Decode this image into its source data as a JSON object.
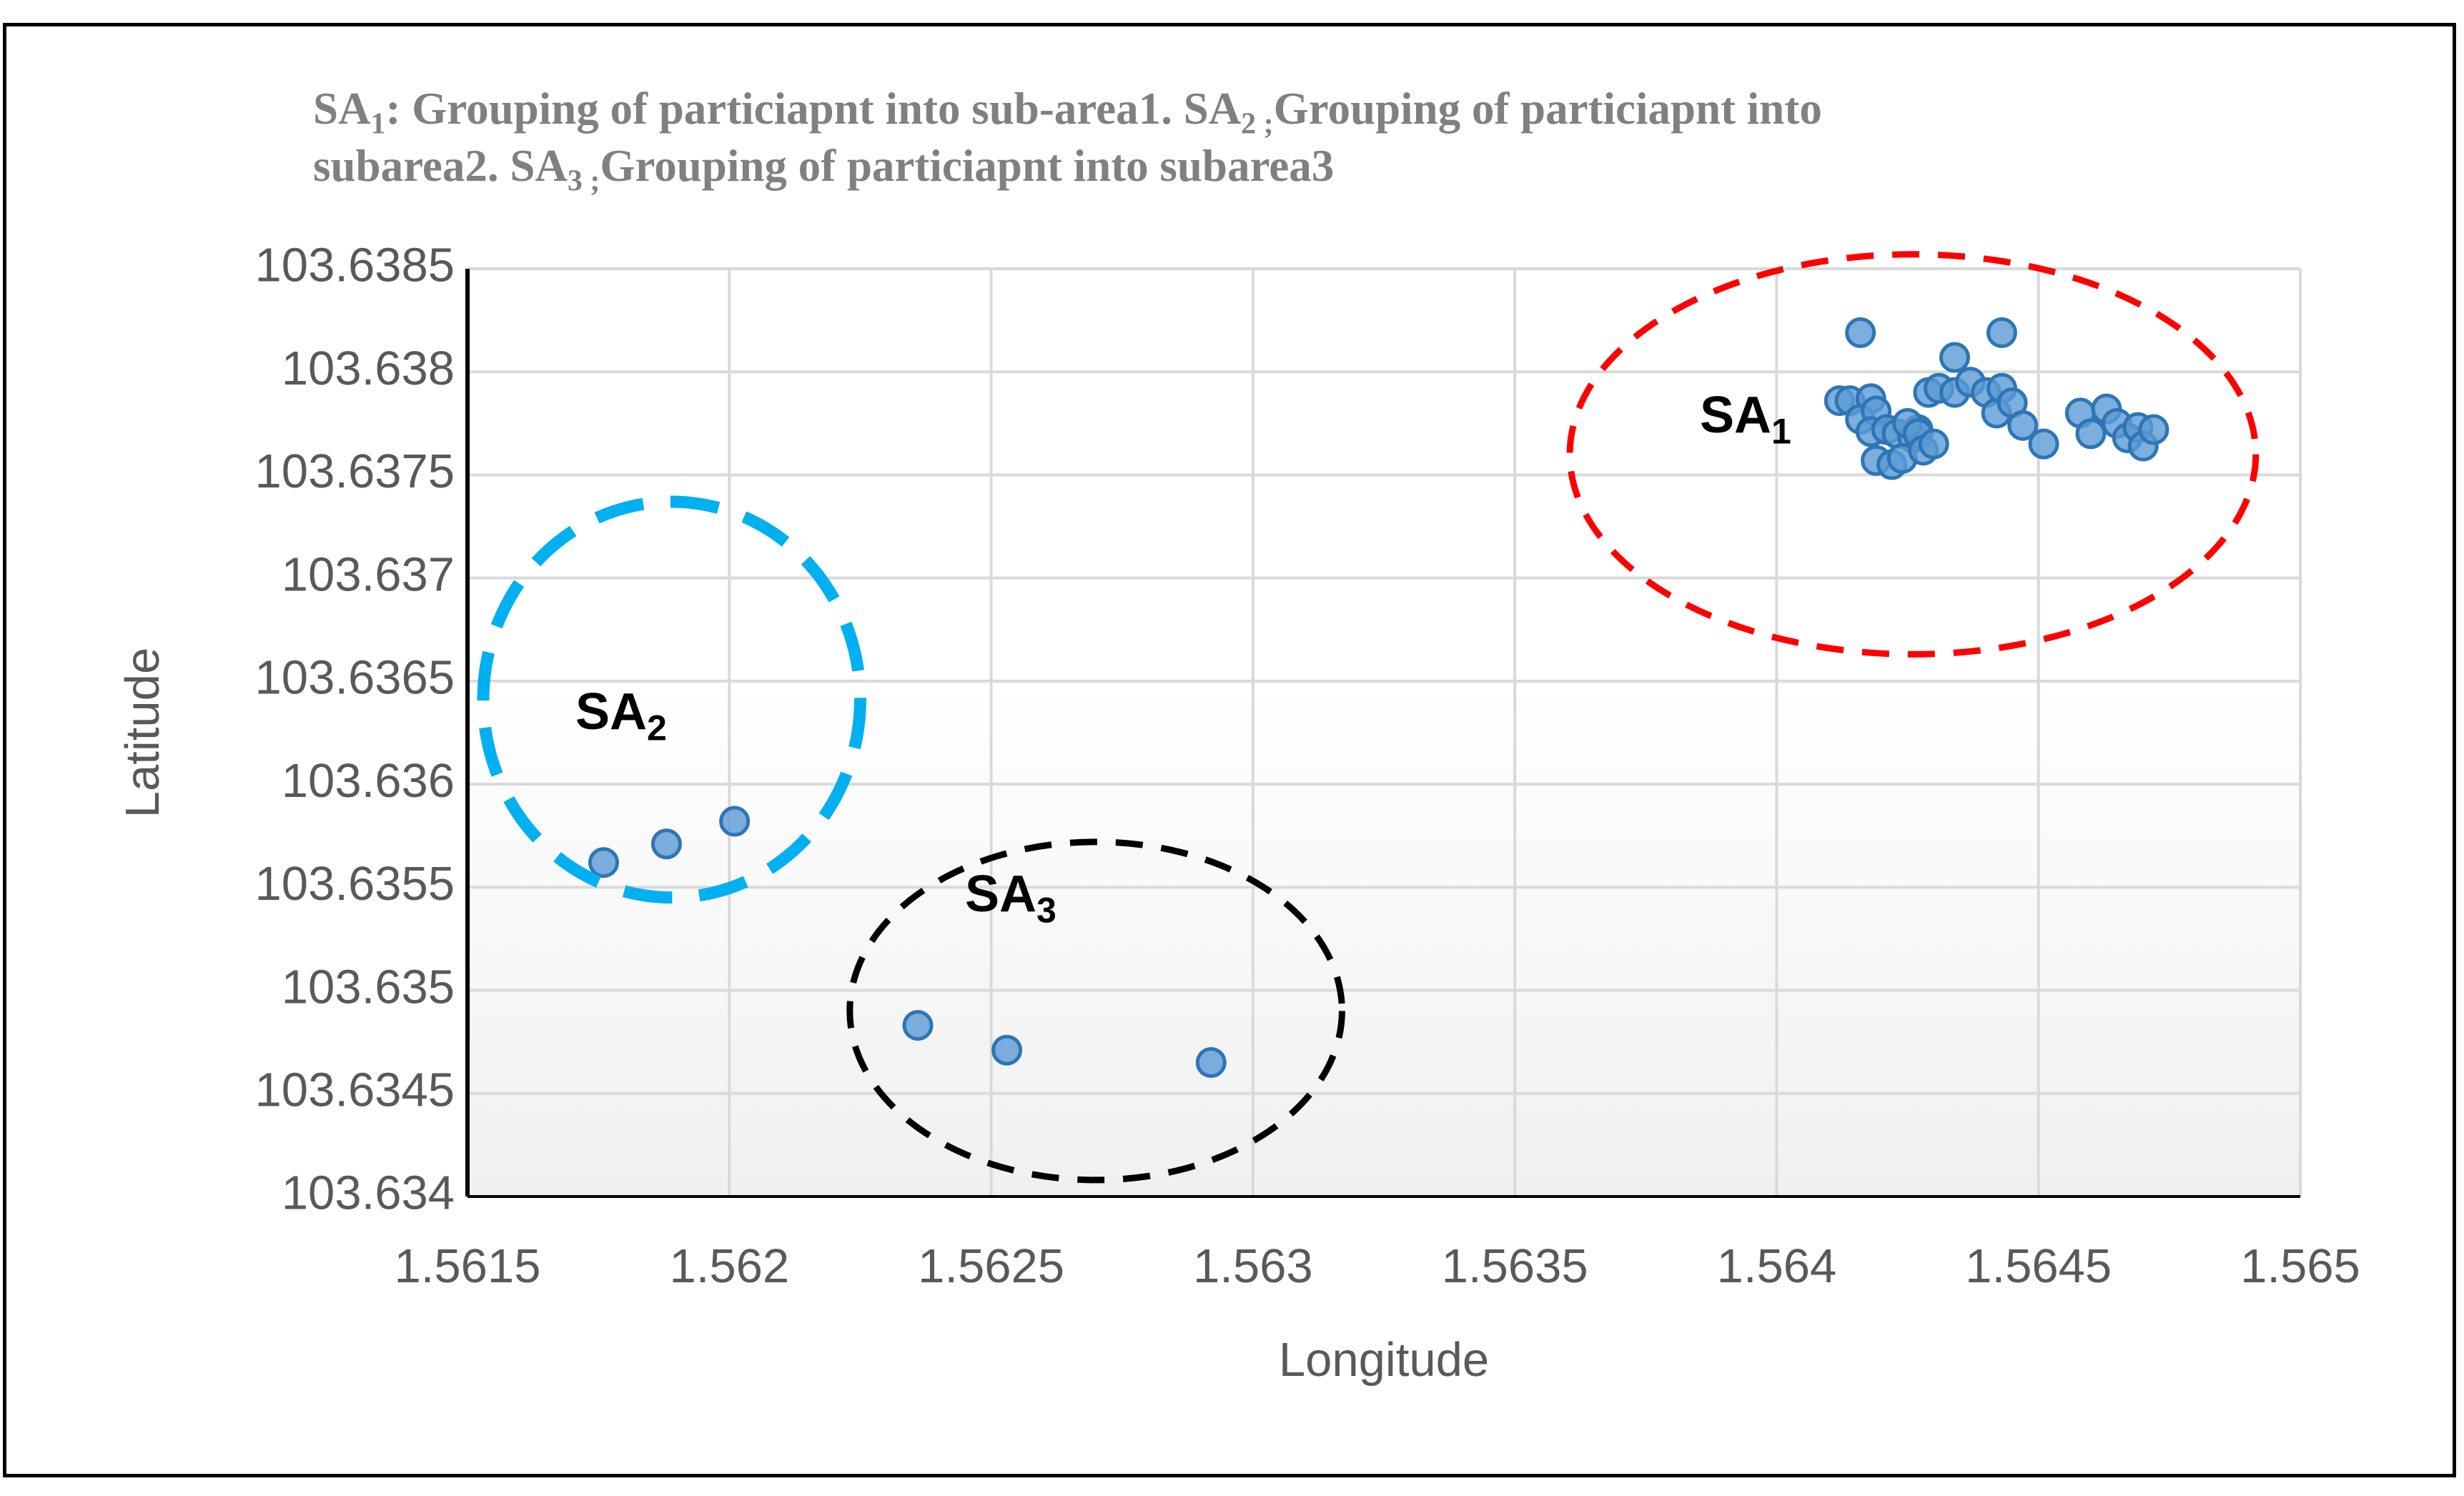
{
  "chart_data": {
    "type": "scatter",
    "title_line1": {
      "a": "SA",
      "a_sub": "1",
      "b": ": Grouping of particiapnt into sub-area1. SA",
      "b_sub": "2 ;",
      "c": "Grouping of particiapnt into"
    },
    "title_line2": {
      "a": "subarea2. SA",
      "a_sub": "3 ;",
      "b": "Grouping of particiapnt into subarea3"
    },
    "xlabel": "Longitude",
    "ylabel": "Latitude",
    "xlim": [
      1.5615,
      1.565
    ],
    "ylim": [
      103.634,
      103.6385
    ],
    "x_ticks": [
      "1.5615",
      "1.562",
      "1.5625",
      "1.563",
      "1.5635",
      "1.564",
      "1.5645",
      "1.565"
    ],
    "y_ticks": [
      "103.634",
      "103.6345",
      "103.635",
      "103.6355",
      "103.636",
      "103.6365",
      "103.637",
      "103.6375",
      "103.638",
      "103.6385"
    ],
    "grid": true,
    "series": [
      {
        "name": "participants",
        "color": "#5b9bd5",
        "edge_color": "#2e75b6",
        "points": [
          [
            1.56176,
            103.63562
          ],
          [
            1.56188,
            103.63571
          ],
          [
            1.56201,
            103.63582
          ],
          [
            1.56236,
            103.63483
          ],
          [
            1.56253,
            103.63471
          ],
          [
            1.56292,
            103.63465
          ],
          [
            1.56416,
            103.63819
          ],
          [
            1.56443,
            103.63819
          ],
          [
            1.56434,
            103.63807
          ],
          [
            1.56412,
            103.63786
          ],
          [
            1.56414,
            103.63786
          ],
          [
            1.56418,
            103.63787
          ],
          [
            1.56416,
            103.63777
          ],
          [
            1.56419,
            103.63781
          ],
          [
            1.56418,
            103.63771
          ],
          [
            1.56421,
            103.63772
          ],
          [
            1.56419,
            103.63757
          ],
          [
            1.56422,
            103.63755
          ],
          [
            1.56423,
            103.6377
          ],
          [
            1.56426,
            103.63768
          ],
          [
            1.56424,
            103.63758
          ],
          [
            1.56427,
            103.63772
          ],
          [
            1.56425,
            103.63775
          ],
          [
            1.56427,
            103.6377
          ],
          [
            1.56428,
            103.63762
          ],
          [
            1.5643,
            103.63765
          ],
          [
            1.56429,
            103.6379
          ],
          [
            1.56431,
            103.63792
          ],
          [
            1.56434,
            103.6379
          ],
          [
            1.56437,
            103.63795
          ],
          [
            1.5644,
            103.6379
          ],
          [
            1.56442,
            103.6378
          ],
          [
            1.56443,
            103.63792
          ],
          [
            1.56445,
            103.63785
          ],
          [
            1.56447,
            103.63774
          ],
          [
            1.56451,
            103.63765
          ],
          [
            1.56458,
            103.6378
          ],
          [
            1.5646,
            103.6377
          ],
          [
            1.56463,
            103.63782
          ],
          [
            1.56465,
            103.63775
          ],
          [
            1.56467,
            103.63768
          ],
          [
            1.56469,
            103.63773
          ],
          [
            1.5647,
            103.63764
          ],
          [
            1.56472,
            103.63772
          ]
        ]
      }
    ],
    "clusters": [
      {
        "label": "SA",
        "sub": "1",
        "color": "#ff0000",
        "cx": 1.56426,
        "cy": 103.6376,
        "rx": 0.000655,
        "ry": 0.00097,
        "dash": "medium"
      },
      {
        "label": "SA",
        "sub": "2",
        "color": "#00b0f0",
        "cx": 1.56189,
        "cy": 103.63641,
        "rx": 0.00036,
        "ry": 0.00096,
        "dash": "long"
      },
      {
        "label": "SA",
        "sub": "3",
        "color": "#000000",
        "cx": 1.5627,
        "cy": 103.6349,
        "rx": 0.00047,
        "ry": 0.00082,
        "dash": "medium"
      }
    ]
  }
}
